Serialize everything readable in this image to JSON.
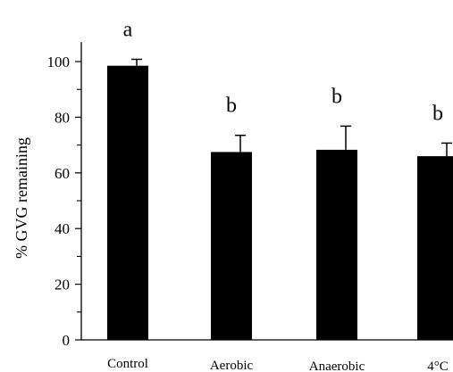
{
  "chart_data": {
    "type": "bar",
    "title": "",
    "xlabel": "",
    "ylabel": "% GVG remaining",
    "ylim": [
      0,
      100
    ],
    "yticks": [
      0,
      20,
      40,
      60,
      80,
      100
    ],
    "grid": false,
    "categories": [
      "Control",
      "Aerobic",
      "Anaerobic",
      "4°C"
    ],
    "values": [
      98.5,
      67.5,
      68.3,
      66.0
    ],
    "errors": [
      2.3,
      6.0,
      8.5,
      4.7
    ],
    "significance": [
      "a",
      "b",
      "b",
      "b"
    ],
    "bar_color": "#000000"
  }
}
